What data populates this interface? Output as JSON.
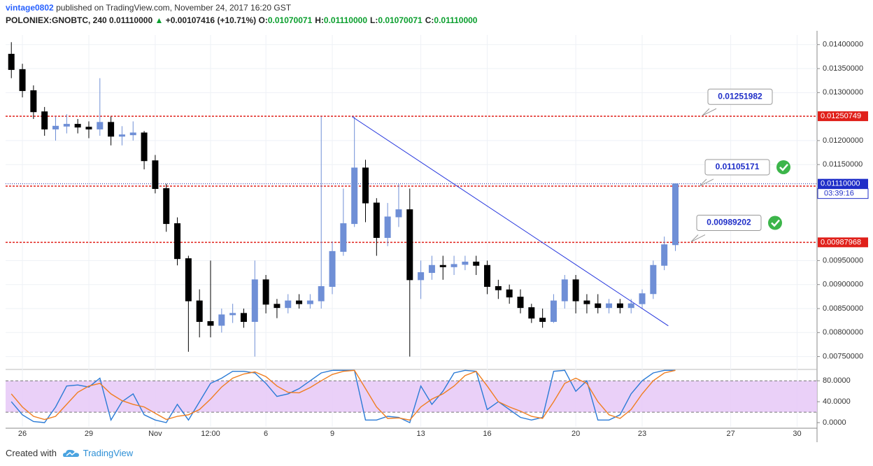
{
  "header": {
    "user": "vintage0802",
    "published": "published on TradingView.com, November 24, 2017 16:20 GST",
    "symbol": "POLONIEX:GNOBTC, 240",
    "last": "0.01110000",
    "arrow": "▲",
    "change": "+0.00107416 (+10.71%)",
    "ohlc": [
      {
        "key": "O:",
        "value": "0.01070071"
      },
      {
        "key": "H:",
        "value": "0.01110000"
      },
      {
        "key": "L:",
        "value": "0.01070071"
      },
      {
        "key": "C:",
        "value": "0.01110000"
      }
    ]
  },
  "chart_data": [
    {
      "type": "candlestick",
      "up_color": "#6f8fd6",
      "down_color": "#000000",
      "grid": true,
      "xlim": [
        -0.76,
        35.9
      ],
      "ylim": [
        0.00729,
        0.0142
      ],
      "xticks": [
        {
          "value": 0,
          "label": "26"
        },
        {
          "value": 3,
          "label": "29"
        },
        {
          "value": 6,
          "label": "Nov"
        },
        {
          "value": 8.5,
          "label": "12:00"
        },
        {
          "value": 11,
          "label": "6"
        },
        {
          "value": 14,
          "label": "9"
        },
        {
          "value": 18,
          "label": "13"
        },
        {
          "value": 21,
          "label": "16"
        },
        {
          "value": 25,
          "label": "20"
        },
        {
          "value": 28,
          "label": "23"
        },
        {
          "value": 32,
          "label": "27"
        },
        {
          "value": 35,
          "label": "30"
        }
      ],
      "yticks": [
        {
          "value": 0.014,
          "label": "0.01400000"
        },
        {
          "value": 0.0135,
          "label": "0.01350000"
        },
        {
          "value": 0.013,
          "label": "0.01300000"
        },
        {
          "value": 0.012,
          "label": "0.01200000"
        },
        {
          "value": 0.0115,
          "label": "0.01150000"
        },
        {
          "value": 0.0095,
          "label": "0.00950000"
        },
        {
          "value": 0.009,
          "label": "0.00900000"
        },
        {
          "value": 0.0085,
          "label": "0.00850000"
        },
        {
          "value": 0.008,
          "label": "0.00800000"
        },
        {
          "value": 0.0075,
          "label": "0.00750000"
        }
      ],
      "x": [
        -0.5,
        0,
        0.5,
        1,
        1.5,
        2,
        2.5,
        3,
        3.5,
        4,
        4.5,
        5,
        5.5,
        6,
        6.5,
        7,
        7.5,
        8,
        8.5,
        9,
        9.5,
        10,
        10.5,
        11,
        11.5,
        12,
        12.5,
        13,
        13.5,
        14,
        14.5,
        15,
        15.5,
        16,
        16.5,
        17,
        17.5,
        18,
        18.5,
        19,
        19.5,
        20,
        20.5,
        21,
        21.5,
        22,
        22.5,
        23,
        23.5,
        24,
        24.5,
        25,
        25.5,
        26,
        26.5,
        27,
        27.5,
        28,
        28.5,
        29,
        29.5
      ],
      "open": [
        0.0138,
        0.01348,
        0.01304,
        0.0126,
        0.01224,
        0.0123,
        0.01234,
        0.01228,
        0.01224,
        0.01238,
        0.01209,
        0.01212,
        0.01216,
        0.01158,
        0.011,
        0.01027,
        0.00954,
        0.00866,
        0.00823,
        0.00815,
        0.00837,
        0.0084,
        0.00823,
        0.0091,
        0.00859,
        0.00852,
        0.00866,
        0.0086,
        0.00866,
        0.00896,
        0.00969,
        0.01027,
        0.01143,
        0.0107,
        0.00998,
        0.01041,
        0.01056,
        0.0091,
        0.00925,
        0.0094,
        0.00937,
        0.00942,
        0.00947,
        0.0094,
        0.00896,
        0.00889,
        0.00874,
        0.00852,
        0.0083,
        0.00823,
        0.00866,
        0.0091,
        0.00866,
        0.0086,
        0.00852,
        0.0086,
        0.00852,
        0.0086,
        0.00881,
        0.0094,
        0.00983
      ],
      "high": [
        0.01405,
        0.0136,
        0.01315,
        0.0127,
        0.0125,
        0.01255,
        0.01245,
        0.0124,
        0.0133,
        0.0125,
        0.0123,
        0.0124,
        0.0122,
        0.0117,
        0.0111,
        0.0104,
        0.0096,
        0.0089,
        0.0095,
        0.0085,
        0.0086,
        0.0085,
        0.0095,
        0.0092,
        0.0087,
        0.0088,
        0.0088,
        0.0088,
        0.0125,
        0.0099,
        0.011,
        0.0125,
        0.0116,
        0.0108,
        0.0107,
        0.0111,
        0.011,
        0.0095,
        0.0096,
        0.0096,
        0.0096,
        0.0096,
        0.0096,
        0.0095,
        0.0091,
        0.009,
        0.0089,
        0.0086,
        0.0085,
        0.0088,
        0.0092,
        0.0092,
        0.0088,
        0.0088,
        0.0087,
        0.0087,
        0.0087,
        0.0089,
        0.0095,
        0.01,
        0.0111
      ],
      "low": [
        0.0133,
        0.0129,
        0.01245,
        0.0121,
        0.012,
        0.01215,
        0.01215,
        0.01205,
        0.0121,
        0.0119,
        0.0119,
        0.012,
        0.0114,
        0.0109,
        0.0101,
        0.0094,
        0.0076,
        0.0079,
        0.0079,
        0.008,
        0.0082,
        0.0081,
        0.0075,
        0.0084,
        0.0083,
        0.0084,
        0.0085,
        0.0085,
        0.0085,
        0.0088,
        0.0096,
        0.0102,
        0.0103,
        0.0096,
        0.0098,
        0.0102,
        0.0075,
        0.0087,
        0.0091,
        0.0091,
        0.0092,
        0.0093,
        0.0092,
        0.0088,
        0.0087,
        0.0086,
        0.0084,
        0.0082,
        0.0081,
        0.0082,
        0.0085,
        0.0084,
        0.0084,
        0.0084,
        0.0084,
        0.0084,
        0.0084,
        0.0085,
        0.0087,
        0.0093,
        0.0097
      ],
      "close": [
        0.01348,
        0.01304,
        0.0126,
        0.01224,
        0.0123,
        0.01234,
        0.01228,
        0.01224,
        0.01238,
        0.01209,
        0.01212,
        0.01216,
        0.01158,
        0.011,
        0.01027,
        0.00954,
        0.00866,
        0.00823,
        0.00815,
        0.00837,
        0.0084,
        0.00823,
        0.0091,
        0.00859,
        0.00852,
        0.00866,
        0.0086,
        0.00866,
        0.00896,
        0.00969,
        0.01027,
        0.01143,
        0.0107,
        0.00998,
        0.01041,
        0.01056,
        0.0091,
        0.00925,
        0.0094,
        0.00937,
        0.00942,
        0.00947,
        0.0094,
        0.00896,
        0.00889,
        0.00874,
        0.00852,
        0.0083,
        0.00823,
        0.00866,
        0.0091,
        0.00866,
        0.0086,
        0.00852,
        0.0086,
        0.00852,
        0.0086,
        0.00881,
        0.0094,
        0.00983,
        0.0111
      ],
      "trendline": {
        "color": "#2233dd",
        "x": [
          14.89,
          29.18
        ],
        "y": [
          0.0125,
          0.00814
        ]
      },
      "levels": [
        {
          "value": 0.01250749,
          "label": "0.01250749"
        },
        {
          "value": 0.01105171,
          "label": "0.01105171"
        },
        {
          "value": 0.00987968,
          "label": "0.00987968"
        }
      ],
      "level_color": "#e0201a",
      "callouts": [
        {
          "value": 0.01251982,
          "label": "0.01251982",
          "check": false
        },
        {
          "value": 0.01105171,
          "label": "0.01105171",
          "check": true
        },
        {
          "value": 0.00989202,
          "label": "0.00989202",
          "check": true
        }
      ],
      "last_price": {
        "value": 0.0111,
        "label": "0.01110000"
      },
      "countdown": "03:39:16"
    },
    {
      "type": "line",
      "ylim": [
        -8,
        99
      ],
      "band": [
        20,
        80
      ],
      "band_color": "#e6c8f7",
      "yticks": [
        {
          "value": 80,
          "label": "80.0000"
        },
        {
          "value": 40,
          "label": "40.0000"
        },
        {
          "value": 0,
          "label": "0.0000"
        }
      ],
      "x": [
        -0.5,
        0,
        0.5,
        1,
        1.5,
        2,
        2.5,
        3,
        3.5,
        4,
        4.5,
        5,
        5.5,
        6,
        6.5,
        7,
        7.5,
        8,
        8.5,
        9,
        9.5,
        10,
        10.5,
        11,
        11.5,
        12,
        12.5,
        13,
        13.5,
        14,
        14.5,
        15,
        15.5,
        16,
        16.5,
        17,
        17.5,
        18,
        18.5,
        19,
        19.5,
        20,
        20.5,
        21,
        21.5,
        22,
        22.5,
        23,
        23.5,
        24,
        24.5,
        25,
        25.5,
        26,
        26.5,
        27,
        27.5,
        28,
        28.5,
        29,
        29.5
      ],
      "series": [
        {
          "color": "#2b7bd6",
          "values": [
            40,
            15,
            2,
            0,
            30,
            70,
            72,
            68,
            85,
            5,
            40,
            55,
            15,
            5,
            0,
            35,
            5,
            40,
            75,
            85,
            98,
            98,
            95,
            75,
            50,
            55,
            65,
            80,
            95,
            100,
            100,
            100,
            5,
            5,
            12,
            10,
            0,
            70,
            35,
            60,
            95,
            100,
            98,
            25,
            40,
            25,
            10,
            5,
            10,
            98,
            100,
            60,
            80,
            5,
            5,
            15,
            55,
            80,
            95,
            100,
            100
          ]
        },
        {
          "color": "#f07d1f",
          "values": [
            55,
            30,
            12,
            6,
            12,
            35,
            58,
            70,
            75,
            55,
            42,
            35,
            30,
            18,
            6,
            12,
            15,
            25,
            45,
            68,
            85,
            93,
            97,
            88,
            70,
            58,
            57,
            67,
            80,
            92,
            98,
            100,
            65,
            30,
            8,
            9,
            5,
            30,
            45,
            55,
            70,
            90,
            98,
            70,
            40,
            30,
            22,
            12,
            8,
            40,
            75,
            85,
            75,
            40,
            15,
            8,
            25,
            55,
            80,
            95,
            100
          ]
        }
      ]
    }
  ],
  "footer": {
    "created": "Created with",
    "brand": "TradingView"
  }
}
